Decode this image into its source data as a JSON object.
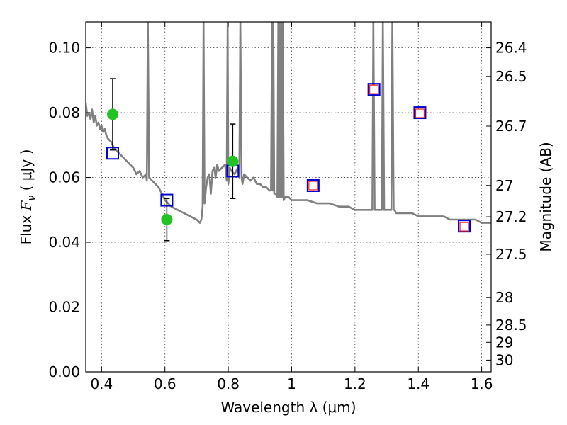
{
  "chart_data": {
    "type": "scatter",
    "xlabel": "Wavelength  λ (μm)",
    "ylabel_prefix": "Flux  ",
    "ylabel_symbol": "F",
    "ylabel_subscript": "ν",
    "ylabel_unit": "  ( μJy )",
    "ylabel_right": "Magnitude (AB)",
    "xlim": [
      0.35,
      1.63
    ],
    "ylim": [
      0.0,
      0.108
    ],
    "grid": true,
    "x_ticks": [
      0.4,
      0.6,
      0.8,
      1.0,
      1.2,
      1.4,
      1.6
    ],
    "x_tick_labels": [
      "0.4",
      "0.6",
      "0.8",
      "1",
      "1.2",
      "1.4",
      "1.6"
    ],
    "y_ticks": [
      0.0,
      0.02,
      0.04,
      0.06,
      0.08,
      0.1
    ],
    "y_tick_labels": [
      "0.00",
      "0.02",
      "0.04",
      "0.06",
      "0.08",
      "0.10"
    ],
    "magnitude_ticks": [
      26.4,
      26.5,
      26.7,
      27.0,
      27.2,
      27.5,
      28.0,
      28.5,
      29.0,
      30.0
    ],
    "magnitude_tick_labels": [
      "26.4",
      "26.5",
      "26.7",
      "27",
      "27.2",
      "27.5",
      "28",
      "28.5",
      "29",
      "30"
    ],
    "colors": {
      "spectrum": "#808080",
      "observed": "#22c322",
      "model_box": "#0000d0",
      "observed_box": "#e8181a"
    },
    "spectrum": {
      "x": [
        0.35,
        0.355,
        0.36,
        0.365,
        0.37,
        0.375,
        0.38,
        0.385,
        0.39,
        0.395,
        0.4,
        0.405,
        0.41,
        0.415,
        0.42,
        0.43,
        0.44,
        0.45,
        0.46,
        0.47,
        0.48,
        0.49,
        0.5,
        0.51,
        0.52,
        0.53,
        0.54,
        0.543,
        0.546,
        0.55,
        0.56,
        0.57,
        0.58,
        0.59,
        0.6,
        0.62,
        0.64,
        0.66,
        0.68,
        0.7,
        0.71,
        0.715,
        0.719,
        0.722,
        0.725,
        0.73,
        0.735,
        0.74,
        0.745,
        0.75,
        0.755,
        0.76,
        0.765,
        0.77,
        0.78,
        0.79,
        0.795,
        0.798,
        0.8,
        0.805,
        0.81,
        0.82,
        0.83,
        0.835,
        0.838,
        0.842,
        0.845,
        0.85,
        0.86,
        0.87,
        0.88,
        0.89,
        0.9,
        0.91,
        0.92,
        0.93,
        0.935,
        0.938,
        0.94,
        0.942,
        0.945,
        0.95,
        0.955,
        0.958,
        0.96,
        0.962,
        0.965,
        0.968,
        0.97,
        0.972,
        0.975,
        0.98,
        0.99,
        1.0,
        1.02,
        1.05,
        1.08,
        1.1,
        1.12,
        1.15,
        1.18,
        1.2,
        1.22,
        1.24,
        1.255,
        1.258,
        1.262,
        1.265,
        1.27,
        1.28,
        1.285,
        1.288,
        1.292,
        1.295,
        1.3,
        1.31,
        1.315,
        1.318,
        1.322,
        1.325,
        1.33,
        1.35,
        1.38,
        1.4,
        1.42,
        1.45,
        1.48,
        1.5,
        1.52,
        1.55,
        1.58,
        1.6,
        1.63
      ],
      "y": [
        0.083,
        0.079,
        0.08,
        0.078,
        0.081,
        0.077,
        0.079,
        0.076,
        0.077,
        0.075,
        0.076,
        0.074,
        0.075,
        0.073,
        0.072,
        0.071,
        0.069,
        0.068,
        0.067,
        0.066,
        0.065,
        0.064,
        0.063,
        0.061,
        0.062,
        0.06,
        0.061,
        0.059,
        0.108,
        0.06,
        0.059,
        0.058,
        0.057,
        0.055,
        0.053,
        0.051,
        0.05,
        0.049,
        0.048,
        0.047,
        0.046,
        0.047,
        0.051,
        0.108,
        0.052,
        0.057,
        0.06,
        0.061,
        0.055,
        0.062,
        0.063,
        0.06,
        0.064,
        0.062,
        0.063,
        0.064,
        0.059,
        0.108,
        0.058,
        0.063,
        0.062,
        0.061,
        0.063,
        0.06,
        0.108,
        0.06,
        0.058,
        0.061,
        0.06,
        0.059,
        0.06,
        0.058,
        0.058,
        0.057,
        0.057,
        0.056,
        0.056,
        0.108,
        0.056,
        0.108,
        0.055,
        0.055,
        0.054,
        0.108,
        0.054,
        0.108,
        0.054,
        0.108,
        0.054,
        0.108,
        0.053,
        0.054,
        0.054,
        0.053,
        0.053,
        0.053,
        0.052,
        0.052,
        0.052,
        0.051,
        0.051,
        0.05,
        0.05,
        0.05,
        0.05,
        0.108,
        0.05,
        0.05,
        0.05,
        0.05,
        0.05,
        0.108,
        0.05,
        0.05,
        0.05,
        0.05,
        0.05,
        0.108,
        0.05,
        0.05,
        0.049,
        0.049,
        0.049,
        0.048,
        0.048,
        0.048,
        0.048,
        0.047,
        0.047,
        0.047,
        0.047,
        0.046,
        0.046
      ]
    },
    "series": [
      {
        "role": "observed-flux",
        "marker": "circle",
        "points": [
          {
            "x": 0.435,
            "y": 0.0795,
            "err": 0.011
          },
          {
            "x": 0.606,
            "y": 0.047,
            "err": 0.0065
          },
          {
            "x": 0.814,
            "y": 0.065,
            "err": 0.0115
          }
        ]
      },
      {
        "role": "model-flux",
        "marker": "square",
        "points": [
          {
            "x": 0.435,
            "y": 0.0675
          },
          {
            "x": 0.606,
            "y": 0.053
          },
          {
            "x": 0.814,
            "y": 0.062
          },
          {
            "x": 1.068,
            "y": 0.0575
          },
          {
            "x": 1.26,
            "y": 0.0872
          },
          {
            "x": 1.405,
            "y": 0.08
          },
          {
            "x": 1.545,
            "y": 0.045
          }
        ]
      },
      {
        "role": "observed-box",
        "marker": "square",
        "points": [
          {
            "x": 1.068,
            "y": 0.0575
          },
          {
            "x": 1.26,
            "y": 0.0872
          },
          {
            "x": 1.405,
            "y": 0.0798
          },
          {
            "x": 1.545,
            "y": 0.0448
          }
        ]
      }
    ]
  }
}
